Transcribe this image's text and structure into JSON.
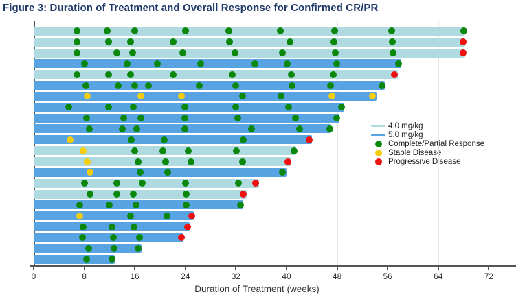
{
  "figure": {
    "title": "Figure 3: Duration of Treatment and Overall Response for Confirmed CR/PR"
  },
  "chart_data": {
    "type": "bar",
    "subtype": "swimmer-plot",
    "title": "Figure 3: Duration of Treatment and Overall Response for Confirmed CR/PR",
    "xlabel": "Duration of Treatment (weeks)",
    "x_ticks": [
      0,
      8,
      16,
      24,
      32,
      40,
      48,
      56,
      64,
      72
    ],
    "xlim": [
      0,
      76
    ],
    "grid": "vertical",
    "legend_position": "right-middle",
    "dose_colors": {
      "4.0 mg/kg": "#AEDAE0",
      "5.0 mg/kg": "#58A3E1"
    },
    "marker_colors": {
      "cr_pr": "#0B870B",
      "sd": "#F3CD0E",
      "pd": "#EF1010"
    },
    "legend": [
      {
        "label": "4.0 mg/kg",
        "swatch": "line",
        "color": "#AEDAE0"
      },
      {
        "label": "5.0 mg/kg",
        "swatch": "line",
        "color": "#58A3E1"
      },
      {
        "label": "Complete/Partial Response",
        "swatch": "dot",
        "color": "#0B870B"
      },
      {
        "label": "Stable Disease",
        "swatch": "dot",
        "color": "#F3CD0E"
      },
      {
        "label": "Progressive Disease",
        "swatch": "dot",
        "color": "#EF1010"
      }
    ],
    "patients": [
      {
        "dose": "4.0 mg/kg",
        "duration_weeks": 68.3,
        "events": [
          {
            "week": 6.8,
            "response": "cr_pr"
          },
          {
            "week": 11.6,
            "response": "cr_pr"
          },
          {
            "week": 16.0,
            "response": "cr_pr"
          },
          {
            "week": 24.0,
            "response": "cr_pr"
          },
          {
            "week": 30.9,
            "response": "cr_pr"
          },
          {
            "week": 39.0,
            "response": "cr_pr"
          },
          {
            "week": 47.6,
            "response": "cr_pr"
          },
          {
            "week": 56.6,
            "response": "cr_pr"
          },
          {
            "week": 68.0,
            "response": "cr_pr"
          }
        ]
      },
      {
        "dose": "4.0 mg/kg",
        "duration_weeks": 68.3,
        "events": [
          {
            "week": 6.8,
            "response": "cr_pr"
          },
          {
            "week": 11.8,
            "response": "cr_pr"
          },
          {
            "week": 15.3,
            "response": "cr_pr"
          },
          {
            "week": 22.1,
            "response": "cr_pr"
          },
          {
            "week": 31.0,
            "response": "cr_pr"
          },
          {
            "week": 40.5,
            "response": "cr_pr"
          },
          {
            "week": 47.5,
            "response": "cr_pr"
          },
          {
            "week": 56.7,
            "response": "cr_pr"
          },
          {
            "week": 67.9,
            "response": "pd"
          }
        ]
      },
      {
        "dose": "4.0 mg/kg",
        "duration_weeks": 68.3,
        "events": [
          {
            "week": 6.8,
            "response": "cr_pr"
          },
          {
            "week": 13.1,
            "response": "cr_pr"
          },
          {
            "week": 15.6,
            "response": "cr_pr"
          },
          {
            "week": 23.6,
            "response": "cr_pr"
          },
          {
            "week": 31.9,
            "response": "cr_pr"
          },
          {
            "week": 39.4,
            "response": "cr_pr"
          },
          {
            "week": 47.7,
            "response": "cr_pr"
          },
          {
            "week": 56.8,
            "response": "cr_pr"
          },
          {
            "week": 67.9,
            "response": "pd"
          }
        ]
      },
      {
        "dose": "5.0 mg/kg",
        "duration_weeks": 58.2,
        "events": [
          {
            "week": 8.0,
            "response": "cr_pr"
          },
          {
            "week": 14.8,
            "response": "cr_pr"
          },
          {
            "week": 19.6,
            "response": "cr_pr"
          },
          {
            "week": 26.4,
            "response": "cr_pr"
          },
          {
            "week": 35.0,
            "response": "cr_pr"
          },
          {
            "week": 40.1,
            "response": "cr_pr"
          },
          {
            "week": 47.9,
            "response": "cr_pr"
          },
          {
            "week": 57.7,
            "response": "cr_pr"
          }
        ]
      },
      {
        "dose": "4.0 mg/kg",
        "duration_weeks": 57.6,
        "events": [
          {
            "week": 6.8,
            "response": "cr_pr"
          },
          {
            "week": 11.8,
            "response": "cr_pr"
          },
          {
            "week": 15.3,
            "response": "cr_pr"
          },
          {
            "week": 22.1,
            "response": "cr_pr"
          },
          {
            "week": 31.4,
            "response": "cr_pr"
          },
          {
            "week": 40.8,
            "response": "cr_pr"
          },
          {
            "week": 47.4,
            "response": "cr_pr"
          },
          {
            "week": 57.1,
            "response": "pd"
          }
        ]
      },
      {
        "dose": "5.0 mg/kg",
        "duration_weeks": 55.5,
        "events": [
          {
            "week": 8.3,
            "response": "cr_pr"
          },
          {
            "week": 13.4,
            "response": "cr_pr"
          },
          {
            "week": 16.0,
            "response": "cr_pr"
          },
          {
            "week": 18.1,
            "response": "cr_pr"
          },
          {
            "week": 26.2,
            "response": "cr_pr"
          },
          {
            "week": 32.0,
            "response": "cr_pr"
          },
          {
            "week": 40.9,
            "response": "cr_pr"
          },
          {
            "week": 47.0,
            "response": "cr_pr"
          },
          {
            "week": 55.1,
            "response": "cr_pr"
          }
        ]
      },
      {
        "dose": "5.0 mg/kg",
        "duration_weeks": 54.2,
        "events": [
          {
            "week": 8.5,
            "response": "sd"
          },
          {
            "week": 17.0,
            "response": "sd"
          },
          {
            "week": 23.4,
            "response": "sd"
          },
          {
            "week": 33.0,
            "response": "cr_pr"
          },
          {
            "week": 39.1,
            "response": "cr_pr"
          },
          {
            "week": 47.2,
            "response": "sd"
          },
          {
            "week": 53.6,
            "response": "sd"
          }
        ]
      },
      {
        "dose": "5.0 mg/kg",
        "duration_weeks": 49.1,
        "events": [
          {
            "week": 5.5,
            "response": "cr_pr"
          },
          {
            "week": 11.9,
            "response": "cr_pr"
          },
          {
            "week": 15.8,
            "response": "cr_pr"
          },
          {
            "week": 23.9,
            "response": "cr_pr"
          },
          {
            "week": 32.0,
            "response": "cr_pr"
          },
          {
            "week": 40.3,
            "response": "cr_pr"
          },
          {
            "week": 48.7,
            "response": "cr_pr"
          }
        ]
      },
      {
        "dose": "5.0 mg/kg",
        "duration_weeks": 48.4,
        "events": [
          {
            "week": 8.4,
            "response": "cr_pr"
          },
          {
            "week": 14.2,
            "response": "cr_pr"
          },
          {
            "week": 17.0,
            "response": "cr_pr"
          },
          {
            "week": 23.9,
            "response": "cr_pr"
          },
          {
            "week": 32.3,
            "response": "cr_pr"
          },
          {
            "week": 41.4,
            "response": "cr_pr"
          },
          {
            "week": 47.9,
            "response": "cr_pr"
          }
        ]
      },
      {
        "dose": "5.0 mg/kg",
        "duration_weeks": 47.1,
        "events": [
          {
            "week": 8.8,
            "response": "cr_pr"
          },
          {
            "week": 14.0,
            "response": "cr_pr"
          },
          {
            "week": 16.3,
            "response": "cr_pr"
          },
          {
            "week": 23.9,
            "response": "cr_pr"
          },
          {
            "week": 34.5,
            "response": "cr_pr"
          },
          {
            "week": 42.1,
            "response": "cr_pr"
          },
          {
            "week": 46.8,
            "response": "cr_pr"
          }
        ]
      },
      {
        "dose": "5.0 mg/kg",
        "duration_weeks": 44.0,
        "events": [
          {
            "week": 5.8,
            "response": "sd"
          },
          {
            "week": 15.4,
            "response": "cr_pr"
          },
          {
            "week": 20.6,
            "response": "cr_pr"
          },
          {
            "week": 33.2,
            "response": "cr_pr"
          },
          {
            "week": 43.6,
            "response": "pd"
          }
        ]
      },
      {
        "dose": "4.0 mg/kg",
        "duration_weeks": 41.5,
        "events": [
          {
            "week": 7.8,
            "response": "sd"
          },
          {
            "week": 16.0,
            "response": "cr_pr"
          },
          {
            "week": 20.4,
            "response": "cr_pr"
          },
          {
            "week": 24.5,
            "response": "cr_pr"
          },
          {
            "week": 32.1,
            "response": "cr_pr"
          },
          {
            "week": 41.2,
            "response": "cr_pr"
          }
        ]
      },
      {
        "dose": "4.0 mg/kg",
        "duration_weeks": 40.6,
        "events": [
          {
            "week": 8.5,
            "response": "sd"
          },
          {
            "week": 16.5,
            "response": "cr_pr"
          },
          {
            "week": 20.9,
            "response": "cr_pr"
          },
          {
            "week": 24.9,
            "response": "cr_pr"
          },
          {
            "week": 33.0,
            "response": "cr_pr"
          },
          {
            "week": 40.2,
            "response": "pd"
          }
        ]
      },
      {
        "dose": "5.0 mg/kg",
        "duration_weeks": 40.0,
        "events": [
          {
            "week": 8.9,
            "response": "sd"
          },
          {
            "week": 16.9,
            "response": "cr_pr"
          },
          {
            "week": 21.2,
            "response": "cr_pr"
          },
          {
            "week": 39.3,
            "response": "cr_pr"
          }
        ]
      },
      {
        "dose": "4.0 mg/kg",
        "duration_weeks": 35.6,
        "events": [
          {
            "week": 8.0,
            "response": "cr_pr"
          },
          {
            "week": 13.1,
            "response": "cr_pr"
          },
          {
            "week": 17.2,
            "response": "cr_pr"
          },
          {
            "week": 24.0,
            "response": "cr_pr"
          },
          {
            "week": 32.4,
            "response": "cr_pr"
          },
          {
            "week": 35.1,
            "response": "pd"
          }
        ]
      },
      {
        "dose": "4.0 mg/kg",
        "duration_weeks": 33.7,
        "events": [
          {
            "week": 8.9,
            "response": "cr_pr"
          },
          {
            "week": 13.1,
            "response": "cr_pr"
          },
          {
            "week": 15.8,
            "response": "cr_pr"
          },
          {
            "week": 24.1,
            "response": "cr_pr"
          },
          {
            "week": 33.1,
            "response": "pd"
          }
        ]
      },
      {
        "dose": "5.0 mg/kg",
        "duration_weeks": 33.2,
        "events": [
          {
            "week": 7.3,
            "response": "cr_pr"
          },
          {
            "week": 12.0,
            "response": "cr_pr"
          },
          {
            "week": 16.2,
            "response": "cr_pr"
          },
          {
            "week": 24.1,
            "response": "cr_pr"
          },
          {
            "week": 32.7,
            "response": "cr_pr"
          }
        ]
      },
      {
        "dose": "5.0 mg/kg",
        "duration_weeks": 25.3,
        "events": [
          {
            "week": 7.3,
            "response": "sd"
          },
          {
            "week": 15.3,
            "response": "cr_pr"
          },
          {
            "week": 21.1,
            "response": "cr_pr"
          },
          {
            "week": 25.0,
            "response": "pd"
          }
        ]
      },
      {
        "dose": "5.0 mg/kg",
        "duration_weeks": 24.7,
        "events": [
          {
            "week": 7.8,
            "response": "cr_pr"
          },
          {
            "week": 12.4,
            "response": "cr_pr"
          },
          {
            "week": 15.9,
            "response": "cr_pr"
          },
          {
            "week": 24.3,
            "response": "pd"
          }
        ]
      },
      {
        "dose": "5.0 mg/kg",
        "duration_weeks": 23.7,
        "events": [
          {
            "week": 7.7,
            "response": "cr_pr"
          },
          {
            "week": 12.6,
            "response": "cr_pr"
          },
          {
            "week": 16.7,
            "response": "cr_pr"
          },
          {
            "week": 23.4,
            "response": "pd"
          }
        ]
      },
      {
        "dose": "5.0 mg/kg",
        "duration_weeks": 17.1,
        "events": [
          {
            "week": 8.7,
            "response": "cr_pr"
          },
          {
            "week": 12.7,
            "response": "cr_pr"
          },
          {
            "week": 16.5,
            "response": "cr_pr"
          }
        ]
      },
      {
        "dose": "5.0 mg/kg",
        "duration_weeks": 12.8,
        "events": [
          {
            "week": 8.4,
            "response": "cr_pr"
          },
          {
            "week": 12.4,
            "response": "cr_pr"
          }
        ]
      }
    ]
  }
}
